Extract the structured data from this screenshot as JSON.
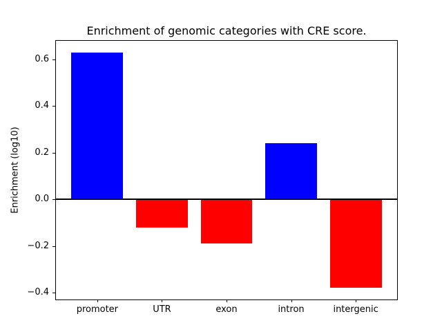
{
  "figure": {
    "background": "#ffffff"
  },
  "chart_data": {
    "type": "bar",
    "title": "Enrichment of genomic categories with CRE score.",
    "xlabel": "",
    "ylabel": "Enrichment (log10)",
    "categories": [
      "promoter",
      "UTR",
      "exon",
      "intron",
      "intergenic"
    ],
    "values": [
      0.63,
      -0.12,
      -0.19,
      0.24,
      -0.38
    ],
    "bar_colors": [
      "#0000ff",
      "#ff0000",
      "#ff0000",
      "#0000ff",
      "#ff0000"
    ],
    "positive_color": "#0000ff",
    "negative_color": "#ff0000",
    "ylim": [
      -0.43,
      0.68
    ],
    "yticks": [
      {
        "value": -0.4,
        "label": "−0.4"
      },
      {
        "value": -0.2,
        "label": "−0.2"
      },
      {
        "value": 0.0,
        "label": "0.0"
      },
      {
        "value": 0.2,
        "label": "0.2"
      },
      {
        "value": 0.4,
        "label": "0.4"
      },
      {
        "value": 0.6,
        "label": "0.6"
      }
    ],
    "zero_line": true,
    "grid": false,
    "legend": null,
    "bar_width_fraction": 0.8
  }
}
